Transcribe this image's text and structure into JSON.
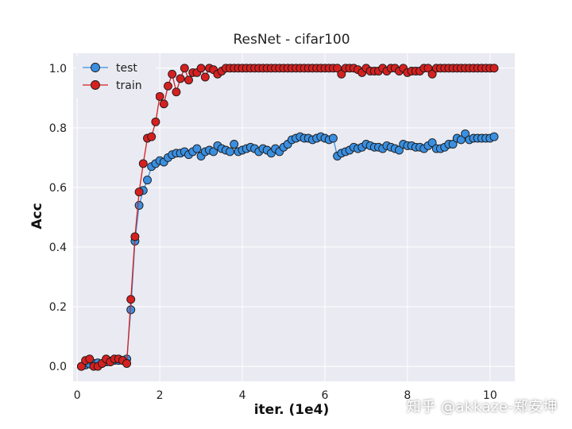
{
  "watermark": "知乎 @akkaze-郑安坤",
  "colors": {
    "background": "#eaeaf2",
    "grid": "#ffffff",
    "test": "#3a8fe0",
    "train": "#d62020",
    "marker_edge": "#1a1a1a"
  },
  "chart_data": {
    "type": "line",
    "title": "ResNet - cifar100",
    "xlabel": "iter. (1e4)",
    "ylabel": "Acc",
    "xlim": [
      -0.1,
      10.6
    ],
    "ylim": [
      -0.05,
      1.05
    ],
    "xticks": [
      0,
      2,
      4,
      6,
      8,
      10
    ],
    "yticks": [
      0.0,
      0.2,
      0.4,
      0.6,
      0.8,
      1.0
    ],
    "grid": true,
    "legend": "top-left",
    "series": [
      {
        "name": "test",
        "color_key": "test",
        "x": [
          0.1,
          0.2,
          0.3,
          0.4,
          0.5,
          0.6,
          0.7,
          0.8,
          0.9,
          1.0,
          1.1,
          1.2,
          1.3,
          1.4,
          1.5,
          1.6,
          1.7,
          1.8,
          1.9,
          2.0,
          2.1,
          2.2,
          2.3,
          2.4,
          2.5,
          2.6,
          2.7,
          2.8,
          2.9,
          3.0,
          3.1,
          3.2,
          3.3,
          3.4,
          3.5,
          3.6,
          3.7,
          3.8,
          3.9,
          4.0,
          4.1,
          4.2,
          4.3,
          4.4,
          4.5,
          4.6,
          4.7,
          4.8,
          4.9,
          5.0,
          5.1,
          5.2,
          5.3,
          5.4,
          5.5,
          5.6,
          5.7,
          5.8,
          5.9,
          6.0,
          6.1,
          6.2,
          6.3,
          6.4,
          6.5,
          6.6,
          6.7,
          6.8,
          6.9,
          7.0,
          7.1,
          7.2,
          7.3,
          7.4,
          7.5,
          7.6,
          7.7,
          7.8,
          7.9,
          8.0,
          8.1,
          8.2,
          8.3,
          8.4,
          8.5,
          8.6,
          8.7,
          8.8,
          8.9,
          9.0,
          9.1,
          9.2,
          9.3,
          9.4,
          9.5,
          9.6,
          9.7,
          9.8,
          9.9,
          10.0,
          10.1
        ],
        "y": [
          0.0,
          0.005,
          0.008,
          0.01,
          0.012,
          0.01,
          0.015,
          0.018,
          0.02,
          0.02,
          0.02,
          0.025,
          0.19,
          0.42,
          0.54,
          0.59,
          0.625,
          0.67,
          0.68,
          0.69,
          0.685,
          0.7,
          0.71,
          0.715,
          0.715,
          0.72,
          0.71,
          0.72,
          0.73,
          0.705,
          0.72,
          0.725,
          0.72,
          0.74,
          0.73,
          0.725,
          0.72,
          0.745,
          0.72,
          0.725,
          0.73,
          0.735,
          0.73,
          0.72,
          0.73,
          0.725,
          0.715,
          0.73,
          0.72,
          0.735,
          0.745,
          0.76,
          0.765,
          0.77,
          0.765,
          0.765,
          0.76,
          0.765,
          0.77,
          0.765,
          0.76,
          0.765,
          0.705,
          0.715,
          0.72,
          0.725,
          0.735,
          0.73,
          0.735,
          0.745,
          0.74,
          0.735,
          0.735,
          0.73,
          0.74,
          0.735,
          0.73,
          0.725,
          0.745,
          0.74,
          0.74,
          0.735,
          0.735,
          0.73,
          0.74,
          0.75,
          0.73,
          0.73,
          0.735,
          0.745,
          0.745,
          0.765,
          0.76,
          0.78,
          0.76,
          0.765,
          0.765,
          0.765,
          0.765,
          0.765,
          0.77
        ]
      },
      {
        "name": "train",
        "color_key": "train",
        "x": [
          0.1,
          0.2,
          0.3,
          0.4,
          0.5,
          0.6,
          0.7,
          0.8,
          0.9,
          1.0,
          1.1,
          1.2,
          1.3,
          1.4,
          1.5,
          1.6,
          1.7,
          1.8,
          1.9,
          2.0,
          2.1,
          2.2,
          2.3,
          2.4,
          2.5,
          2.6,
          2.7,
          2.8,
          2.9,
          3.0,
          3.1,
          3.2,
          3.3,
          3.4,
          3.5,
          3.6,
          3.7,
          3.8,
          3.9,
          4.0,
          4.1,
          4.2,
          4.3,
          4.4,
          4.5,
          4.6,
          4.7,
          4.8,
          4.9,
          5.0,
          5.1,
          5.2,
          5.3,
          5.4,
          5.5,
          5.6,
          5.7,
          5.8,
          5.9,
          6.0,
          6.1,
          6.2,
          6.3,
          6.4,
          6.5,
          6.6,
          6.7,
          6.8,
          6.9,
          7.0,
          7.1,
          7.2,
          7.3,
          7.4,
          7.5,
          7.6,
          7.7,
          7.8,
          7.9,
          8.0,
          8.1,
          8.2,
          8.3,
          8.4,
          8.5,
          8.6,
          8.7,
          8.8,
          8.9,
          9.0,
          9.1,
          9.2,
          9.3,
          9.4,
          9.5,
          9.6,
          9.7,
          9.8,
          9.9,
          10.0,
          10.1
        ],
        "y": [
          0.0,
          0.02,
          0.025,
          0.0,
          0.0,
          0.01,
          0.025,
          0.015,
          0.025,
          0.025,
          0.02,
          0.01,
          0.225,
          0.435,
          0.585,
          0.68,
          0.765,
          0.77,
          0.82,
          0.905,
          0.88,
          0.94,
          0.98,
          0.92,
          0.965,
          1.0,
          0.96,
          0.985,
          0.985,
          1.0,
          0.97,
          1.0,
          0.995,
          0.98,
          0.99,
          1.0,
          1.0,
          1.0,
          1.0,
          1.0,
          1.0,
          1.0,
          1.0,
          1.0,
          1.0,
          1.0,
          1.0,
          1.0,
          1.0,
          1.0,
          1.0,
          1.0,
          1.0,
          1.0,
          1.0,
          1.0,
          1.0,
          1.0,
          1.0,
          1.0,
          1.0,
          1.0,
          1.0,
          0.98,
          1.0,
          1.0,
          1.0,
          0.995,
          0.985,
          1.0,
          0.99,
          0.99,
          0.99,
          1.0,
          0.99,
          1.0,
          1.0,
          0.99,
          1.0,
          0.985,
          0.99,
          0.99,
          0.99,
          1.0,
          1.0,
          0.98,
          1.0,
          1.0,
          1.0,
          1.0,
          1.0,
          1.0,
          1.0,
          1.0,
          1.0,
          1.0,
          1.0,
          1.0,
          1.0,
          1.0,
          1.0
        ]
      }
    ]
  }
}
